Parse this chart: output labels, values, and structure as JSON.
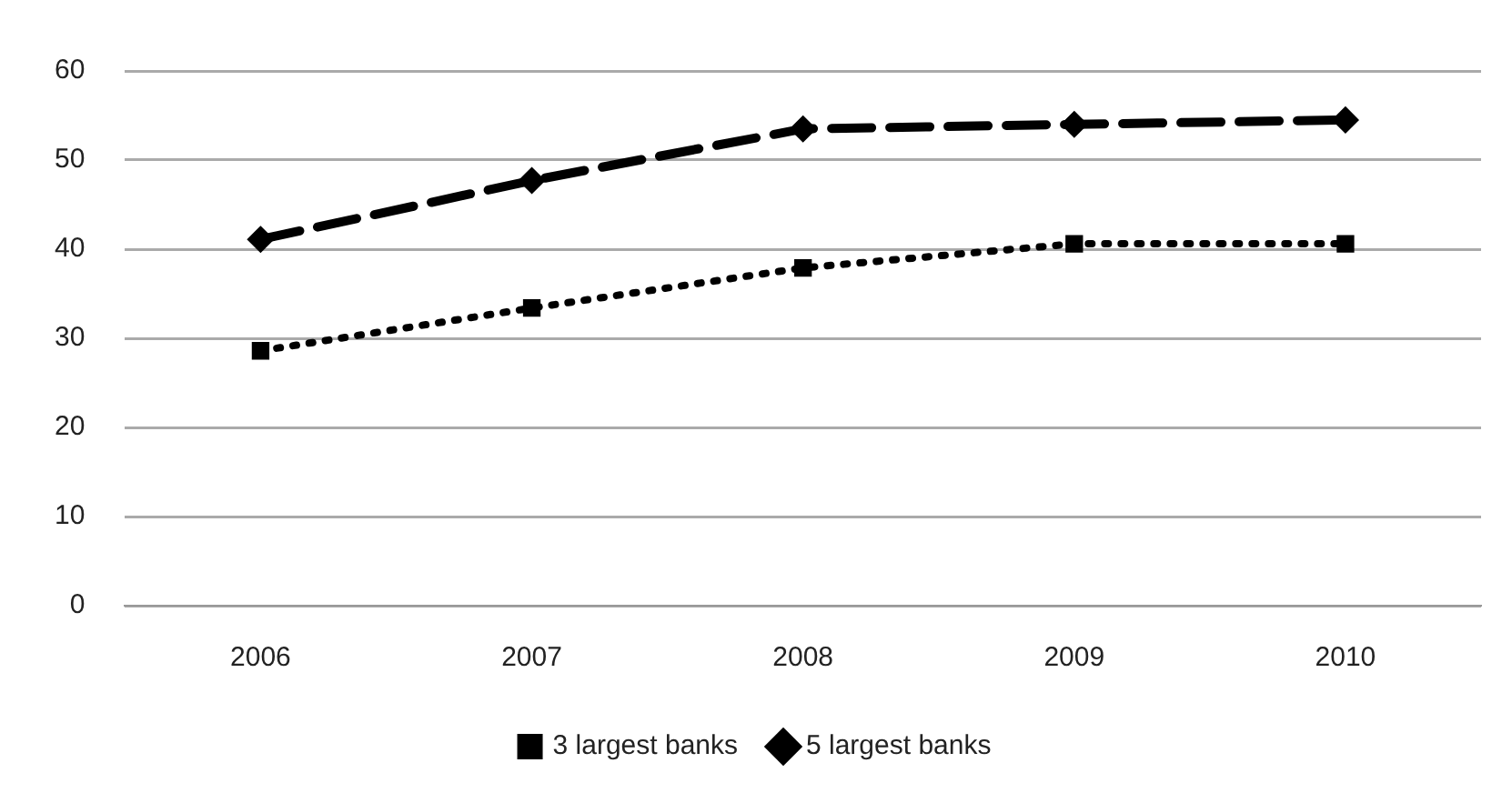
{
  "chart_data": {
    "type": "line",
    "categories": [
      "2006",
      "2007",
      "2008",
      "2009",
      "2010"
    ],
    "series": [
      {
        "name": "3 largest banks",
        "color": "#000000",
        "values": [
          28.6,
          33.4,
          37.9,
          40.6,
          40.6
        ],
        "line_style": "dotted",
        "marker": "square"
      },
      {
        "name": "5 largest banks",
        "color": "#000000",
        "values": [
          41.1,
          47.7,
          53.5,
          54.0,
          54.5
        ],
        "line_style": "dashed",
        "marker": "diamond"
      }
    ],
    "ylim": [
      0,
      60
    ],
    "yticks": [
      0,
      10,
      20,
      30,
      40,
      50,
      60
    ],
    "grid": "y",
    "legend": "bottom"
  }
}
